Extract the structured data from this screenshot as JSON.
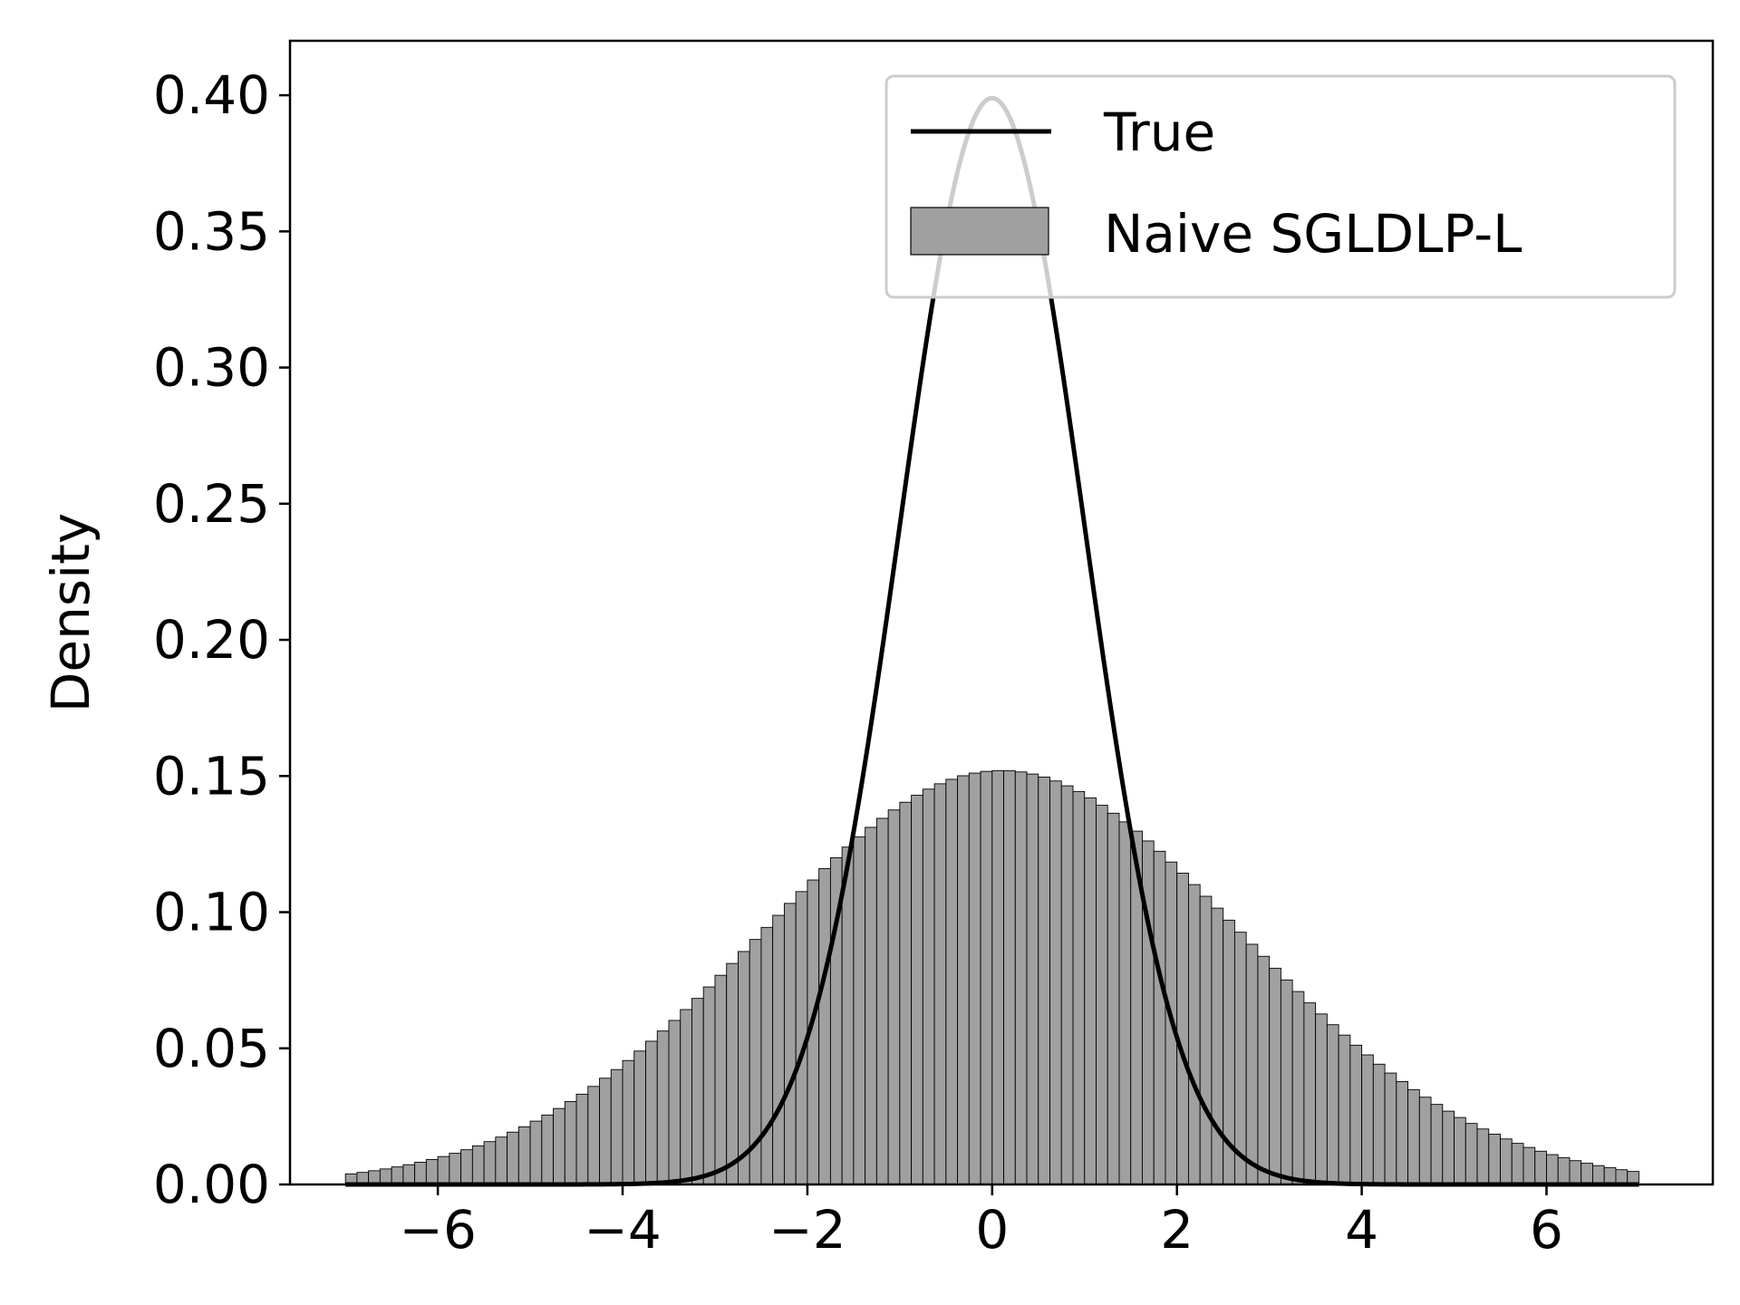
{
  "chart_data": {
    "type": "bar",
    "xlabel": "",
    "ylabel": "Density",
    "xlim": [
      -7.6,
      7.8
    ],
    "ylim": [
      0,
      0.42
    ],
    "xticks": [
      -6,
      -4,
      -2,
      0,
      2,
      4,
      6
    ],
    "xtick_labels": [
      "−6",
      "−4",
      "−2",
      "0",
      "2",
      "4",
      "6"
    ],
    "yticks": [
      0.0,
      0.05,
      0.1,
      0.15,
      0.2,
      0.25,
      0.3,
      0.35,
      0.4
    ],
    "ytick_labels": [
      "0.00",
      "0.05",
      "0.10",
      "0.15",
      "0.20",
      "0.25",
      "0.30",
      "0.35",
      "0.40"
    ],
    "grid": false,
    "legend_position": "top-right",
    "legend": [
      "True",
      "Naive SGLDLP-L"
    ],
    "series": [
      {
        "name": "True",
        "kind": "line",
        "color": "#000000",
        "x_range": [
          -7.0,
          7.0
        ],
        "mean": 0,
        "std": 1
      },
      {
        "name": "Naive SGLDLP-L",
        "kind": "histogram",
        "color": "#a0a0a0",
        "edge_color": "#000000",
        "x_range": [
          -7.0,
          7.0
        ],
        "bin_count": 112,
        "peak_density": 0.152,
        "center": 0.1,
        "std": 2.6
      }
    ]
  }
}
